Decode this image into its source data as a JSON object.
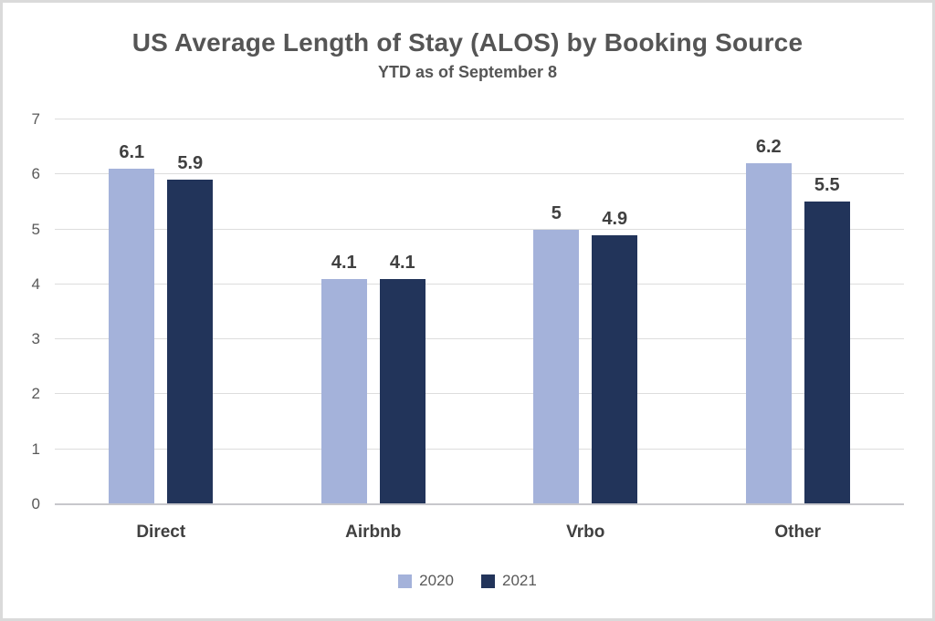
{
  "chart_data": {
    "type": "bar",
    "title": "US Average Length of Stay (ALOS) by Booking Source",
    "subtitle": "YTD as of September 8",
    "categories": [
      "Direct",
      "Airbnb",
      "Vrbo",
      "Other"
    ],
    "series": [
      {
        "name": "2020",
        "color": "#a4b2da",
        "values": [
          6.1,
          4.1,
          5,
          6.2
        ]
      },
      {
        "name": "2021",
        "color": "#22345a",
        "values": [
          5.9,
          4.1,
          4.9,
          5.5
        ]
      }
    ],
    "ylim": [
      0,
      7
    ],
    "yticks": [
      0,
      1,
      2,
      3,
      4,
      5,
      6,
      7
    ],
    "grid": true,
    "legend_position": "bottom"
  }
}
